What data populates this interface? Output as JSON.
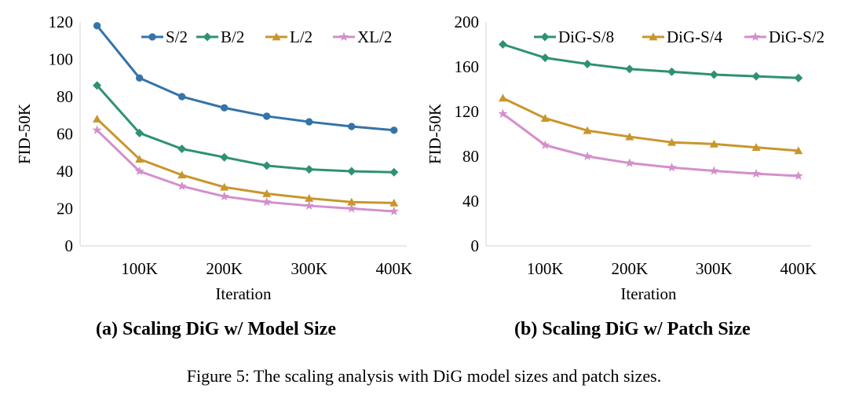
{
  "figure_caption": "Figure 5: The scaling analysis with DiG model sizes and patch sizes.",
  "chart_data": [
    {
      "type": "line",
      "caption": "(a) Scaling DiG w/ Model Size",
      "xlabel": "Iteration",
      "ylabel": "FID-50K",
      "ylim": [
        0,
        120
      ],
      "yticks": [
        "0",
        "20",
        "40",
        "60",
        "80",
        "100",
        "120"
      ],
      "xticks": [
        "100K",
        "200K",
        "300K",
        "400K"
      ],
      "xtick_values": [
        100,
        200,
        300,
        400
      ],
      "x": [
        50,
        100,
        150,
        200,
        250,
        300,
        350,
        400
      ],
      "xlim": [
        30,
        415
      ],
      "grid": false,
      "legend_position": "top-right",
      "series": [
        {
          "name": "S/2",
          "color": "#3573a8",
          "marker": "circle",
          "values": [
            118,
            90,
            80,
            74,
            69.5,
            66.5,
            64,
            62
          ]
        },
        {
          "name": "B/2",
          "color": "#2e9270",
          "marker": "diamond",
          "values": [
            86,
            60.5,
            52,
            47.5,
            43,
            41,
            40,
            39.5
          ]
        },
        {
          "name": "L/2",
          "color": "#c9962c",
          "marker": "triangle",
          "values": [
            68,
            46.5,
            38,
            31.5,
            28,
            25.5,
            23.5,
            23
          ]
        },
        {
          "name": "XL/2",
          "color": "#d38fcc",
          "marker": "star",
          "values": [
            62,
            40,
            32,
            26.5,
            23.5,
            21.5,
            20,
            18.5
          ]
        }
      ]
    },
    {
      "type": "line",
      "caption": "(b) Scaling DiG w/ Patch Size",
      "xlabel": "Iteration",
      "ylabel": "FID-50K",
      "ylim": [
        0,
        200
      ],
      "yticks": [
        "0",
        "40",
        "80",
        "120",
        "160",
        "200"
      ],
      "xticks": [
        "100K",
        "200K",
        "300K",
        "400K"
      ],
      "xtick_values": [
        100,
        200,
        300,
        400
      ],
      "x": [
        50,
        100,
        150,
        200,
        250,
        300,
        350,
        400
      ],
      "xlim": [
        30,
        415
      ],
      "grid": false,
      "legend_position": "top",
      "series": [
        {
          "name": "DiG-S/8",
          "color": "#2e9270",
          "marker": "diamond",
          "values": [
            180,
            168,
            162.5,
            158,
            155.5,
            153,
            151.5,
            150
          ]
        },
        {
          "name": "DiG-S/4",
          "color": "#c9962c",
          "marker": "triangle",
          "values": [
            132,
            114,
            103,
            97.5,
            92.5,
            91,
            88,
            85
          ]
        },
        {
          "name": "DiG-S/2",
          "color": "#d38fcc",
          "marker": "star",
          "values": [
            118,
            90,
            80,
            74,
            70,
            67,
            64.5,
            62.5
          ]
        }
      ]
    }
  ]
}
